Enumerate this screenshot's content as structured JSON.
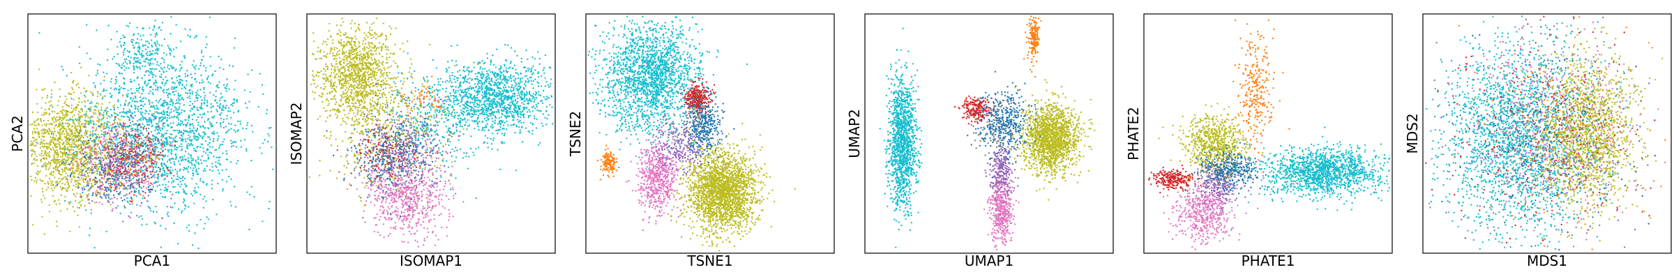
{
  "chart_data": [
    {
      "type": "scatter",
      "xlabel": "PCA1",
      "ylabel": "PCA2",
      "ticks": "none",
      "grid": false,
      "series": [
        {
          "color": "#bcbd22",
          "clusters": [
            {
              "cx": 0.17,
              "cy": 0.56,
              "sx": 0.095,
              "sy": 0.11,
              "n": 1400
            }
          ]
        },
        {
          "color": "#17becf",
          "clusters": [
            {
              "cx": 0.55,
              "cy": 0.48,
              "sx": 0.17,
              "sy": 0.17,
              "n": 1900
            },
            {
              "cx": 0.46,
              "cy": 0.16,
              "sx": 0.05,
              "sy": 0.05,
              "n": 150
            }
          ]
        },
        {
          "color": "#e377c2",
          "clusters": [
            {
              "cx": 0.36,
              "cy": 0.62,
              "sx": 0.08,
              "sy": 0.08,
              "n": 320
            }
          ]
        },
        {
          "color": "#d62728",
          "clusters": [
            {
              "cx": 0.42,
              "cy": 0.6,
              "sx": 0.065,
              "sy": 0.065,
              "n": 220
            }
          ]
        },
        {
          "color": "#1f77b4",
          "clusters": [
            {
              "cx": 0.35,
              "cy": 0.66,
              "sx": 0.08,
              "sy": 0.08,
              "n": 220
            }
          ]
        },
        {
          "color": "#9467bd",
          "clusters": [
            {
              "cx": 0.38,
              "cy": 0.64,
              "sx": 0.08,
              "sy": 0.08,
              "n": 180
            }
          ]
        },
        {
          "color": "#ff7f0e",
          "clusters": [
            {
              "cx": 0.4,
              "cy": 0.62,
              "sx": 0.07,
              "sy": 0.07,
              "n": 80
            }
          ]
        },
        {
          "color": "#7f7f7f",
          "clusters": [
            {
              "cx": 0.33,
              "cy": 0.6,
              "sx": 0.08,
              "sy": 0.08,
              "n": 80
            }
          ]
        }
      ]
    },
    {
      "type": "scatter",
      "xlabel": "ISOMAP1",
      "ylabel": "ISOMAP2",
      "ticks": "none",
      "grid": false,
      "series": [
        {
          "color": "#bcbd22",
          "clusters": [
            {
              "cx": 0.2,
              "cy": 0.25,
              "sx": 0.08,
              "sy": 0.1,
              "n": 1200
            },
            {
              "cx": 0.32,
              "cy": 0.5,
              "sx": 0.12,
              "sy": 0.12,
              "n": 400
            }
          ]
        },
        {
          "color": "#17becf",
          "clusters": [
            {
              "cx": 0.76,
              "cy": 0.35,
              "sx": 0.11,
              "sy": 0.075,
              "n": 1300
            },
            {
              "cx": 0.5,
              "cy": 0.45,
              "sx": 0.1,
              "sy": 0.1,
              "n": 300
            }
          ]
        },
        {
          "color": "#e377c2",
          "clusters": [
            {
              "cx": 0.4,
              "cy": 0.76,
              "sx": 0.08,
              "sy": 0.08,
              "n": 650
            }
          ]
        },
        {
          "color": "#d62728",
          "clusters": [
            {
              "cx": 0.32,
              "cy": 0.58,
              "sx": 0.06,
              "sy": 0.06,
              "n": 150
            }
          ]
        },
        {
          "color": "#1f77b4",
          "clusters": [
            {
              "cx": 0.34,
              "cy": 0.6,
              "sx": 0.08,
              "sy": 0.08,
              "n": 260
            }
          ]
        },
        {
          "color": "#9467bd",
          "clusters": [
            {
              "cx": 0.4,
              "cy": 0.55,
              "sx": 0.08,
              "sy": 0.08,
              "n": 260
            }
          ]
        },
        {
          "color": "#ff7f0e",
          "clusters": [
            {
              "cx": 0.47,
              "cy": 0.35,
              "sx": 0.04,
              "sy": 0.04,
              "n": 60
            }
          ]
        },
        {
          "color": "#7f7f7f",
          "clusters": [
            {
              "cx": 0.33,
              "cy": 0.6,
              "sx": 0.09,
              "sy": 0.09,
              "n": 100
            }
          ]
        }
      ]
    },
    {
      "type": "scatter",
      "xlabel": "TSNE1",
      "ylabel": "TSNE2",
      "ticks": "none",
      "grid": false,
      "series": [
        {
          "color": "#17becf",
          "clusters": [
            {
              "cx": 0.26,
              "cy": 0.26,
              "sx": 0.095,
              "sy": 0.12,
              "n": 1900
            }
          ]
        },
        {
          "color": "#bcbd22",
          "clusters": [
            {
              "cx": 0.55,
              "cy": 0.74,
              "sx": 0.07,
              "sy": 0.085,
              "n": 2200
            }
          ]
        },
        {
          "color": "#e377c2",
          "clusters": [
            {
              "cx": 0.29,
              "cy": 0.68,
              "sx": 0.04,
              "sy": 0.075,
              "n": 600
            }
          ]
        },
        {
          "color": "#9467bd",
          "clusters": [
            {
              "cx": 0.38,
              "cy": 0.56,
              "sx": 0.05,
              "sy": 0.05,
              "n": 220
            }
          ]
        },
        {
          "color": "#d62728",
          "clusters": [
            {
              "cx": 0.45,
              "cy": 0.35,
              "sx": 0.025,
              "sy": 0.03,
              "n": 300
            }
          ]
        },
        {
          "color": "#1f77b4",
          "clusters": [
            {
              "cx": 0.47,
              "cy": 0.47,
              "sx": 0.04,
              "sy": 0.055,
              "n": 320
            }
          ]
        },
        {
          "color": "#ff7f0e",
          "clusters": [
            {
              "cx": 0.09,
              "cy": 0.62,
              "sx": 0.015,
              "sy": 0.025,
              "n": 130
            }
          ]
        },
        {
          "color": "#7f7f7f",
          "clusters": [
            {
              "cx": 0.42,
              "cy": 0.45,
              "sx": 0.05,
              "sy": 0.05,
              "n": 70
            }
          ]
        }
      ]
    },
    {
      "type": "scatter",
      "xlabel": "UMAP1",
      "ylabel": "UMAP2",
      "ticks": "none",
      "grid": false,
      "series": [
        {
          "color": "#17becf",
          "clusters": [
            {
              "cx": 0.15,
              "cy": 0.53,
              "sx": 0.028,
              "sy": 0.14,
              "n": 1300
            }
          ]
        },
        {
          "color": "#bcbd22",
          "clusters": [
            {
              "cx": 0.75,
              "cy": 0.52,
              "sx": 0.055,
              "sy": 0.07,
              "n": 1600
            }
          ]
        },
        {
          "color": "#e377c2",
          "clusters": [
            {
              "cx": 0.55,
              "cy": 0.82,
              "sx": 0.022,
              "sy": 0.075,
              "n": 500
            }
          ]
        },
        {
          "color": "#9467bd",
          "clusters": [
            {
              "cx": 0.55,
              "cy": 0.65,
              "sx": 0.025,
              "sy": 0.06,
              "n": 250
            }
          ]
        },
        {
          "color": "#ff7f0e",
          "clusters": [
            {
              "cx": 0.68,
              "cy": 0.1,
              "sx": 0.012,
              "sy": 0.05,
              "n": 180
            }
          ]
        },
        {
          "color": "#d62728",
          "clusters": [
            {
              "cx": 0.45,
              "cy": 0.4,
              "sx": 0.03,
              "sy": 0.025,
              "n": 220
            }
          ]
        },
        {
          "color": "#1f77b4",
          "clusters": [
            {
              "cx": 0.56,
              "cy": 0.45,
              "sx": 0.05,
              "sy": 0.06,
              "n": 400
            }
          ]
        },
        {
          "color": "#7f7f7f",
          "clusters": [
            {
              "cx": 0.52,
              "cy": 0.48,
              "sx": 0.05,
              "sy": 0.06,
              "n": 80
            }
          ]
        }
      ]
    },
    {
      "type": "scatter",
      "xlabel": "PHATE1",
      "ylabel": "PHATE2",
      "ticks": "none",
      "grid": false,
      "series": [
        {
          "color": "#17becf",
          "clusters": [
            {
              "cx": 0.72,
              "cy": 0.66,
              "sx": 0.12,
              "sy": 0.05,
              "n": 1400
            }
          ]
        },
        {
          "color": "#ff7f0e",
          "clusters": [
            {
              "cx": 0.45,
              "cy": 0.32,
              "sx": 0.035,
              "sy": 0.12,
              "n": 280
            }
          ]
        },
        {
          "color": "#bcbd22",
          "clusters": [
            {
              "cx": 0.29,
              "cy": 0.54,
              "sx": 0.06,
              "sy": 0.055,
              "n": 700
            }
          ]
        },
        {
          "color": "#e377c2",
          "clusters": [
            {
              "cx": 0.24,
              "cy": 0.83,
              "sx": 0.06,
              "sy": 0.06,
              "n": 500
            }
          ]
        },
        {
          "color": "#9467bd",
          "clusters": [
            {
              "cx": 0.3,
              "cy": 0.72,
              "sx": 0.04,
              "sy": 0.04,
              "n": 200
            }
          ]
        },
        {
          "color": "#d62728",
          "clusters": [
            {
              "cx": 0.12,
              "cy": 0.69,
              "sx": 0.04,
              "sy": 0.02,
              "n": 250
            }
          ]
        },
        {
          "color": "#1f77b4",
          "clusters": [
            {
              "cx": 0.34,
              "cy": 0.65,
              "sx": 0.06,
              "sy": 0.04,
              "n": 300
            }
          ]
        },
        {
          "color": "#7f7f7f",
          "clusters": [
            {
              "cx": 0.31,
              "cy": 0.66,
              "sx": 0.06,
              "sy": 0.04,
              "n": 80
            }
          ]
        }
      ]
    },
    {
      "type": "scatter",
      "xlabel": "MDS1",
      "ylabel": "MDS2",
      "ticks": "none",
      "grid": false,
      "series": [
        {
          "color": "#17becf",
          "clusters": [
            {
              "cx": 0.38,
              "cy": 0.52,
              "sx": 0.15,
              "sy": 0.2,
              "n": 2200
            }
          ]
        },
        {
          "color": "#bcbd22",
          "clusters": [
            {
              "cx": 0.66,
              "cy": 0.5,
              "sx": 0.1,
              "sy": 0.16,
              "n": 1600
            }
          ]
        },
        {
          "color": "#e377c2",
          "clusters": [
            {
              "cx": 0.55,
              "cy": 0.42,
              "sx": 0.18,
              "sy": 0.2,
              "n": 300
            }
          ]
        },
        {
          "color": "#d62728",
          "clusters": [
            {
              "cx": 0.5,
              "cy": 0.5,
              "sx": 0.18,
              "sy": 0.2,
              "n": 250
            }
          ]
        },
        {
          "color": "#1f77b4",
          "clusters": [
            {
              "cx": 0.5,
              "cy": 0.5,
              "sx": 0.18,
              "sy": 0.2,
              "n": 300
            }
          ]
        },
        {
          "color": "#9467bd",
          "clusters": [
            {
              "cx": 0.5,
              "cy": 0.5,
              "sx": 0.18,
              "sy": 0.2,
              "n": 250
            }
          ]
        },
        {
          "color": "#ff7f0e",
          "clusters": [
            {
              "cx": 0.5,
              "cy": 0.5,
              "sx": 0.18,
              "sy": 0.2,
              "n": 120
            }
          ]
        },
        {
          "color": "#7f7f7f",
          "clusters": [
            {
              "cx": 0.5,
              "cy": 0.5,
              "sx": 0.18,
              "sy": 0.2,
              "n": 100
            }
          ]
        }
      ]
    }
  ]
}
